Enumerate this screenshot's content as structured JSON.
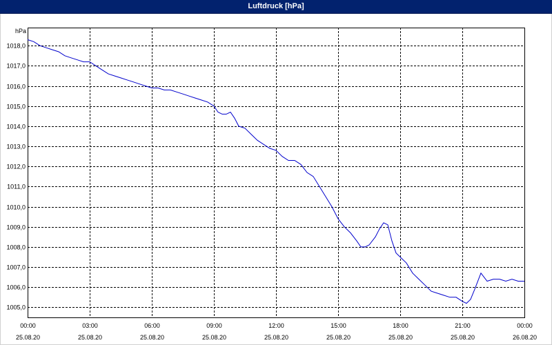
{
  "window": {
    "title": "Luftdruck [hPa]"
  },
  "chart_data": {
    "type": "line",
    "title": "Luftdruck [hPa]",
    "ylabel": "hPa",
    "xlabel": "",
    "ylim": [
      1004.5,
      1018.9
    ],
    "xlim": [
      0,
      24
    ],
    "grid": true,
    "y_ticks": [
      "1005,0",
      "1006,0",
      "1007,0",
      "1008,0",
      "1009,0",
      "1010,0",
      "1011,0",
      "1012,0",
      "1013,0",
      "1014,0",
      "1015,0",
      "1016,0",
      "1017,0",
      "1018,0"
    ],
    "x_ticks": [
      {
        "time": "00:00",
        "date": "25.08.20"
      },
      {
        "time": "03:00",
        "date": "25.08.20"
      },
      {
        "time": "06:00",
        "date": "25.08.20"
      },
      {
        "time": "09:00",
        "date": "25.08.20"
      },
      {
        "time": "12:00",
        "date": "25.08.20"
      },
      {
        "time": "15:00",
        "date": "25.08.20"
      },
      {
        "time": "18:00",
        "date": "25.08.20"
      },
      {
        "time": "21:00",
        "date": "25.08.20"
      },
      {
        "time": "00:00",
        "date": "26.08.20"
      }
    ],
    "series": [
      {
        "color": "#0000cc",
        "x": [
          0.0,
          0.3,
          0.6,
          0.9,
          1.2,
          1.5,
          1.8,
          2.1,
          2.4,
          2.7,
          3.0,
          3.3,
          3.6,
          3.9,
          4.2,
          4.5,
          4.8,
          5.1,
          5.4,
          5.7,
          6.0,
          6.3,
          6.6,
          6.9,
          7.2,
          7.5,
          7.8,
          8.1,
          8.4,
          8.7,
          9.0,
          9.2,
          9.4,
          9.6,
          9.8,
          10.0,
          10.2,
          10.5,
          10.8,
          11.1,
          11.4,
          11.7,
          12.0,
          12.3,
          12.6,
          12.9,
          13.2,
          13.5,
          13.8,
          14.1,
          14.4,
          14.7,
          15.0,
          15.3,
          15.6,
          15.9,
          16.1,
          16.3,
          16.5,
          16.8,
          17.0,
          17.2,
          17.4,
          17.6,
          17.8,
          18.0,
          18.3,
          18.6,
          18.9,
          19.2,
          19.5,
          19.8,
          20.1,
          20.4,
          20.7,
          21.0,
          21.2,
          21.4,
          21.6,
          21.9,
          22.2,
          22.5,
          22.8,
          23.1,
          23.4,
          23.7,
          24.0
        ],
        "y": [
          1018.3,
          1018.2,
          1018.0,
          1017.9,
          1017.8,
          1017.7,
          1017.5,
          1017.4,
          1017.3,
          1017.2,
          1017.2,
          1017.0,
          1016.8,
          1016.6,
          1016.5,
          1016.4,
          1016.3,
          1016.2,
          1016.1,
          1016.0,
          1015.9,
          1015.9,
          1015.8,
          1015.8,
          1015.7,
          1015.6,
          1015.5,
          1015.4,
          1015.3,
          1015.2,
          1015.0,
          1014.7,
          1014.6,
          1014.6,
          1014.7,
          1014.4,
          1014.0,
          1013.9,
          1013.6,
          1013.3,
          1013.1,
          1012.9,
          1012.8,
          1012.5,
          1012.3,
          1012.3,
          1012.1,
          1011.7,
          1011.5,
          1011.0,
          1010.5,
          1010.0,
          1009.4,
          1009.0,
          1008.7,
          1008.3,
          1008.0,
          1008.0,
          1008.1,
          1008.5,
          1008.9,
          1009.2,
          1009.1,
          1008.3,
          1007.7,
          1007.5,
          1007.2,
          1006.7,
          1006.4,
          1006.1,
          1005.8,
          1005.7,
          1005.6,
          1005.5,
          1005.5,
          1005.3,
          1005.2,
          1005.4,
          1005.9,
          1006.7,
          1006.3,
          1006.4,
          1006.4,
          1006.3,
          1006.4,
          1006.3,
          1006.3
        ]
      }
    ]
  }
}
